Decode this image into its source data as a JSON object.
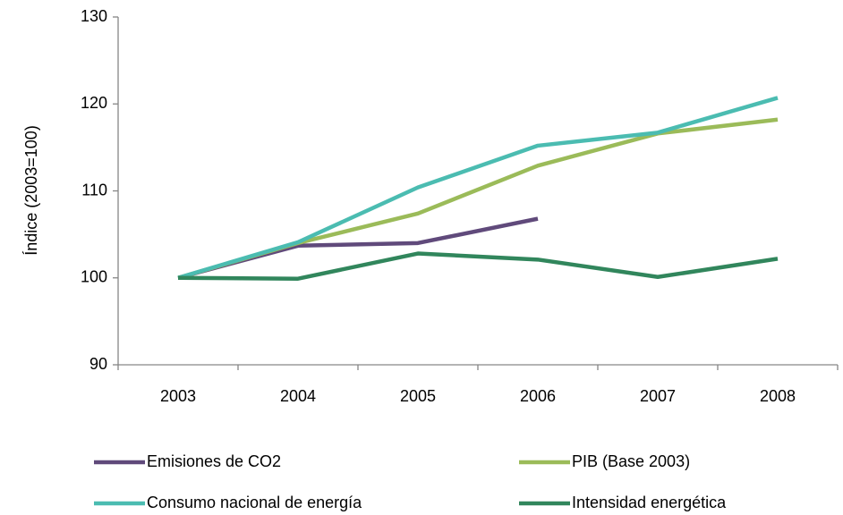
{
  "chart_data": {
    "type": "line",
    "y_label": "Índice (2003=100)",
    "categories": [
      "2003",
      "2004",
      "2005",
      "2006",
      "2007",
      "2008"
    ],
    "series": [
      {
        "name": "Emisiones de CO2",
        "color": "#604a7b",
        "values": [
          100,
          103.7,
          104,
          106.8,
          null,
          null
        ]
      },
      {
        "name": "PIB (Base 2003)",
        "color": "#9bbb59",
        "values": [
          100,
          104,
          107.4,
          112.9,
          116.6,
          118.2
        ]
      },
      {
        "name": "Consumo nacional de energía",
        "color": "#4bbcb1",
        "values": [
          100,
          104.1,
          110.4,
          115.2,
          116.7,
          120.7
        ]
      },
      {
        "name": "Intensidad energética",
        "color": "#31865c",
        "values": [
          100,
          99.9,
          102.8,
          102.1,
          100.1,
          102.2
        ]
      }
    ],
    "ylim": [
      90,
      130
    ],
    "yticks": [
      90,
      100,
      110,
      120,
      130
    ],
    "grid": false
  }
}
